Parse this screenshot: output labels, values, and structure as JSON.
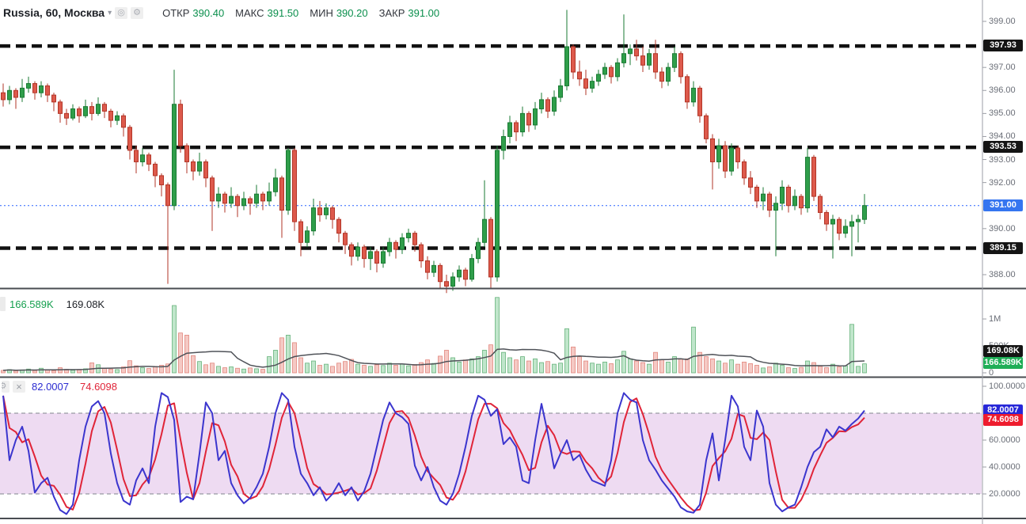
{
  "header": {
    "symbol": "Russia, 60, Москва",
    "caret_icon": "▾",
    "eye_icon": "◎",
    "gear_icon": "⚙",
    "ohlc_items": [
      {
        "label": "ОТКР",
        "value": "390.40"
      },
      {
        "label": "МАКС",
        "value": "391.50"
      },
      {
        "label": "МИН",
        "value": "390.20"
      },
      {
        "label": "ЗАКР",
        "value": "391.00"
      }
    ]
  },
  "volume_pane": {
    "legend_current": "166.589K",
    "legend_ma": "169.08K",
    "axis_ticks": [
      {
        "value": 1000,
        "label": "1M"
      },
      {
        "value": 500,
        "label": "500K"
      },
      {
        "value": 0,
        "label": "0"
      }
    ],
    "badge_ma": {
      "label": "169.08K"
    },
    "badge_current": {
      "label": "166.589K"
    }
  },
  "stoch_pane": {
    "gear_icon": "⚙",
    "close_icon": "×",
    "legend_k": "82.0007",
    "legend_d": "74.6098",
    "axis_ticks": [
      {
        "value": 100,
        "label": "100.0000"
      },
      {
        "value": 60,
        "label": "60.0000"
      },
      {
        "value": 40,
        "label": "40.0000"
      },
      {
        "value": 20,
        "label": "20.0000"
      }
    ],
    "badge_k": {
      "value": 82.0007,
      "label": "82.0007"
    },
    "badge_d": {
      "value": 74.6098,
      "label": "74.6098"
    }
  },
  "price_axis": {
    "ticks": [
      {
        "value": 399,
        "label": "399.00"
      },
      {
        "value": 397,
        "label": "397.00"
      },
      {
        "value": 396,
        "label": "396.00"
      },
      {
        "value": 395,
        "label": "395.00"
      },
      {
        "value": 394,
        "label": "394.00"
      },
      {
        "value": 393,
        "label": "393.00"
      },
      {
        "value": 392,
        "label": "392.00"
      },
      {
        "value": 390,
        "label": "390.00"
      },
      {
        "value": 388,
        "label": "388.00"
      }
    ],
    "level_badges": [
      {
        "value": 397.93,
        "label": "397.93"
      },
      {
        "value": 393.53,
        "label": "393.53"
      },
      {
        "value": 389.15,
        "label": "389.15"
      }
    ],
    "last_badge": {
      "value": 391.0,
      "label": "391.00"
    }
  },
  "colors": {
    "up_fill": "#2f9e4a",
    "up_stroke": "#1a7a33",
    "down_fill": "#dd5a4c",
    "down_stroke": "#b23527",
    "vol_up_fill": "#c0e6cb",
    "vol_up_stroke": "#5fae74",
    "vol_down_fill": "#f5c9c4",
    "vol_down_stroke": "#e08077",
    "vol_ma": "#4f5258",
    "k_line": "#3b35ce",
    "d_line": "#e02438",
    "band_fill": "#9c27b0",
    "band_edge": "#80848e",
    "level_line": "#111111",
    "last_price_line": "#2962ff",
    "divider": "#494c52",
    "axis_line": "#9b9ea6"
  },
  "chart_data": {
    "type": "candlestick",
    "title": "Russia, 60, Москва",
    "interval": "60",
    "exchange": "Москва",
    "last_price": 391.0,
    "price_levels": [
      397.93,
      393.53,
      389.15
    ],
    "stoch_band": [
      20,
      80
    ],
    "candles": [
      [
        395.9,
        396.3,
        395.3,
        395.6
      ],
      [
        395.6,
        396.2,
        395.4,
        396.0
      ],
      [
        396.0,
        396.1,
        395.2,
        395.7
      ],
      [
        395.7,
        396.5,
        395.5,
        396.1
      ],
      [
        396.1,
        396.6,
        395.9,
        396.3
      ],
      [
        396.3,
        396.4,
        395.6,
        395.9
      ],
      [
        395.9,
        396.4,
        395.7,
        396.2
      ],
      [
        396.2,
        396.3,
        395.5,
        395.8
      ],
      [
        395.8,
        395.9,
        395.1,
        395.5
      ],
      [
        395.5,
        395.6,
        394.6,
        395.0
      ],
      [
        395.0,
        395.2,
        394.5,
        394.8
      ],
      [
        394.8,
        395.4,
        394.7,
        395.2
      ],
      [
        395.2,
        395.3,
        394.6,
        394.9
      ],
      [
        394.9,
        395.6,
        394.8,
        395.3
      ],
      [
        395.3,
        395.5,
        394.7,
        395.0
      ],
      [
        395.0,
        395.7,
        394.9,
        395.4
      ],
      [
        395.4,
        395.5,
        394.8,
        395.1
      ],
      [
        395.1,
        395.2,
        394.4,
        394.7
      ],
      [
        394.7,
        395.1,
        394.5,
        394.9
      ],
      [
        394.9,
        395.0,
        394.0,
        394.4
      ],
      [
        394.4,
        394.5,
        393.0,
        393.4
      ],
      [
        393.4,
        393.6,
        392.4,
        392.9
      ],
      [
        392.9,
        393.5,
        392.7,
        393.2
      ],
      [
        393.2,
        393.3,
        392.5,
        392.8
      ],
      [
        392.8,
        392.9,
        391.8,
        392.3
      ],
      [
        392.3,
        392.4,
        391.4,
        391.9
      ],
      [
        391.9,
        392.0,
        387.6,
        391.0
      ],
      [
        391.0,
        396.9,
        390.8,
        395.4
      ],
      [
        395.4,
        395.6,
        393.3,
        393.6
      ],
      [
        393.6,
        393.7,
        392.4,
        392.9
      ],
      [
        392.9,
        393.0,
        392.1,
        392.5
      ],
      [
        392.5,
        393.3,
        392.3,
        392.9
      ],
      [
        392.9,
        393.0,
        391.8,
        392.2
      ],
      [
        392.2,
        392.3,
        389.9,
        391.2
      ],
      [
        391.2,
        391.8,
        390.9,
        391.5
      ],
      [
        391.5,
        391.6,
        390.7,
        391.1
      ],
      [
        391.1,
        391.8,
        390.9,
        391.4
      ],
      [
        391.4,
        391.5,
        390.5,
        391.0
      ],
      [
        391.0,
        391.6,
        390.8,
        391.3
      ],
      [
        391.3,
        391.4,
        390.6,
        391.1
      ],
      [
        391.1,
        391.9,
        390.9,
        391.5
      ],
      [
        391.5,
        391.6,
        390.8,
        391.2
      ],
      [
        391.2,
        392.0,
        391.0,
        391.6
      ],
      [
        391.6,
        392.6,
        391.4,
        392.2
      ],
      [
        392.2,
        392.3,
        389.6,
        390.8
      ],
      [
        390.8,
        393.5,
        390.6,
        393.4
      ],
      [
        393.4,
        393.5,
        389.9,
        390.3
      ],
      [
        390.3,
        390.4,
        388.8,
        389.4
      ],
      [
        389.4,
        390.1,
        389.2,
        389.9
      ],
      [
        389.9,
        391.3,
        389.7,
        390.9
      ],
      [
        390.9,
        391.2,
        390.3,
        390.6
      ],
      [
        390.6,
        391.1,
        390.4,
        390.9
      ],
      [
        390.9,
        391.0,
        390.0,
        390.4
      ],
      [
        390.4,
        390.5,
        389.4,
        389.8
      ],
      [
        389.8,
        389.9,
        388.9,
        389.3
      ],
      [
        389.3,
        389.4,
        388.4,
        388.8
      ],
      [
        388.8,
        389.4,
        388.6,
        389.2
      ],
      [
        389.2,
        389.3,
        388.3,
        388.7
      ],
      [
        388.7,
        389.2,
        388.2,
        389.0
      ],
      [
        389.0,
        389.1,
        388.1,
        388.5
      ],
      [
        388.5,
        389.2,
        388.3,
        389.0
      ],
      [
        389.0,
        389.6,
        388.8,
        389.4
      ],
      [
        389.4,
        389.5,
        388.7,
        389.1
      ],
      [
        389.1,
        389.8,
        388.9,
        389.6
      ],
      [
        389.6,
        390.0,
        389.4,
        389.8
      ],
      [
        389.8,
        389.9,
        389.0,
        389.3
      ],
      [
        389.3,
        389.4,
        388.3,
        388.6
      ],
      [
        388.6,
        388.8,
        387.8,
        388.1
      ],
      [
        388.1,
        388.6,
        387.9,
        388.4
      ],
      [
        388.4,
        388.5,
        387.4,
        387.7
      ],
      [
        387.7,
        388.0,
        387.2,
        387.5
      ],
      [
        387.5,
        388.1,
        387.3,
        387.9
      ],
      [
        387.9,
        388.4,
        387.7,
        388.2
      ],
      [
        388.2,
        388.3,
        387.5,
        387.8
      ],
      [
        387.8,
        388.9,
        387.7,
        388.7
      ],
      [
        388.7,
        389.6,
        388.5,
        389.4
      ],
      [
        389.4,
        392.1,
        389.2,
        390.4
      ],
      [
        390.4,
        390.5,
        387.4,
        387.9
      ],
      [
        387.9,
        393.6,
        387.7,
        393.4
      ],
      [
        393.4,
        394.3,
        393.0,
        394.0
      ],
      [
        394.0,
        394.9,
        393.7,
        394.6
      ],
      [
        394.6,
        394.7,
        393.8,
        394.2
      ],
      [
        394.2,
        395.3,
        394.0,
        395.0
      ],
      [
        395.0,
        395.1,
        394.2,
        394.5
      ],
      [
        394.5,
        395.5,
        394.3,
        395.2
      ],
      [
        395.2,
        395.9,
        395.0,
        395.6
      ],
      [
        395.6,
        395.7,
        394.8,
        395.1
      ],
      [
        395.1,
        396.0,
        394.9,
        395.7
      ],
      [
        395.7,
        396.5,
        395.5,
        396.2
      ],
      [
        396.2,
        399.5,
        396.0,
        397.9
      ],
      [
        397.9,
        398.0,
        396.5,
        396.8
      ],
      [
        396.8,
        397.3,
        396.2,
        396.5
      ],
      [
        396.5,
        396.9,
        395.8,
        396.1
      ],
      [
        396.1,
        396.6,
        395.9,
        396.4
      ],
      [
        396.4,
        396.9,
        396.2,
        396.7
      ],
      [
        396.7,
        397.2,
        396.5,
        397.0
      ],
      [
        397.0,
        397.1,
        396.3,
        396.6
      ],
      [
        396.6,
        397.4,
        396.4,
        397.2
      ],
      [
        397.2,
        399.3,
        397.0,
        397.6
      ],
      [
        397.6,
        398.0,
        397.1,
        397.8
      ],
      [
        397.8,
        398.2,
        397.3,
        397.5
      ],
      [
        397.5,
        397.9,
        396.8,
        397.1
      ],
      [
        397.1,
        397.8,
        396.9,
        397.6
      ],
      [
        397.6,
        398.2,
        396.5,
        396.8
      ],
      [
        396.8,
        397.0,
        396.1,
        396.4
      ],
      [
        396.4,
        397.2,
        396.2,
        397.0
      ],
      [
        397.0,
        397.9,
        396.8,
        397.6
      ],
      [
        397.6,
        397.7,
        396.3,
        396.6
      ],
      [
        396.6,
        396.7,
        395.2,
        395.5
      ],
      [
        395.5,
        396.4,
        395.3,
        396.1
      ],
      [
        396.1,
        396.2,
        394.6,
        394.9
      ],
      [
        394.9,
        395.0,
        393.7,
        393.9
      ],
      [
        393.9,
        394.1,
        391.7,
        392.9
      ],
      [
        392.9,
        393.9,
        392.6,
        393.6
      ],
      [
        393.6,
        393.8,
        392.2,
        392.5
      ],
      [
        392.5,
        393.7,
        392.3,
        393.5
      ],
      [
        393.5,
        393.6,
        392.6,
        392.9
      ],
      [
        392.9,
        393.0,
        391.9,
        392.2
      ],
      [
        392.2,
        392.5,
        391.5,
        391.8
      ],
      [
        391.8,
        391.9,
        390.9,
        391.2
      ],
      [
        391.2,
        391.8,
        390.8,
        391.5
      ],
      [
        391.5,
        391.6,
        390.5,
        390.8
      ],
      [
        390.8,
        391.4,
        388.8,
        391.1
      ],
      [
        391.1,
        392.1,
        390.8,
        391.8
      ],
      [
        391.8,
        391.9,
        390.7,
        391.0
      ],
      [
        391.0,
        391.7,
        390.8,
        391.4
      ],
      [
        391.4,
        391.5,
        390.6,
        390.9
      ],
      [
        390.9,
        393.5,
        390.7,
        393.1
      ],
      [
        393.1,
        393.2,
        391.2,
        391.4
      ],
      [
        391.4,
        391.5,
        390.4,
        390.7
      ],
      [
        390.7,
        390.8,
        389.9,
        390.2
      ],
      [
        390.2,
        390.6,
        388.7,
        390.4
      ],
      [
        390.4,
        390.5,
        389.5,
        389.8
      ],
      [
        389.8,
        390.4,
        389.6,
        390.1
      ],
      [
        390.1,
        390.6,
        388.8,
        390.3
      ],
      [
        390.3,
        390.6,
        389.4,
        390.4
      ],
      [
        390.4,
        391.5,
        390.2,
        391.0
      ]
    ],
    "volumes_k": [
      45,
      60,
      38,
      55,
      70,
      42,
      85,
      50,
      40,
      95,
      65,
      48,
      55,
      75,
      185,
      150,
      90,
      70,
      60,
      110,
      225,
      130,
      95,
      80,
      120,
      140,
      165,
      1250,
      740,
      700,
      320,
      210,
      150,
      180,
      120,
      95,
      110,
      85,
      70,
      90,
      75,
      65,
      300,
      420,
      650,
      700,
      560,
      280,
      180,
      220,
      140,
      160,
      120,
      180,
      210,
      250,
      160,
      140,
      120,
      150,
      135,
      180,
      140,
      160,
      130,
      155,
      190,
      240,
      175,
      310,
      420,
      280,
      200,
      240,
      260,
      300,
      420,
      520,
      1400,
      380,
      280,
      240,
      300,
      220,
      260,
      190,
      210,
      160,
      180,
      820,
      480,
      300,
      220,
      180,
      160,
      200,
      170,
      240,
      400,
      260,
      220,
      190,
      160,
      380,
      240,
      200,
      300,
      260,
      260,
      850,
      380,
      300,
      260,
      220,
      180,
      240,
      160,
      200,
      170,
      140,
      90,
      110,
      180,
      140,
      95,
      80,
      100,
      220,
      190,
      120,
      95,
      160,
      110,
      130,
      900,
      120,
      166.589
    ],
    "stoch_k": [
      93,
      45,
      60,
      70,
      52,
      21,
      28,
      32,
      18,
      8,
      5,
      12,
      45,
      70,
      85,
      89,
      80,
      50,
      28,
      15,
      12,
      30,
      39,
      28,
      70,
      95,
      92,
      75,
      14,
      18,
      16,
      50,
      88,
      80,
      45,
      52,
      28,
      19,
      13,
      17,
      25,
      35,
      55,
      80,
      95,
      90,
      55,
      35,
      28,
      19,
      25,
      15,
      20,
      28,
      19,
      25,
      15,
      22,
      35,
      55,
      75,
      88,
      80,
      77,
      72,
      41,
      30,
      40,
      25,
      15,
      12,
      20,
      35,
      55,
      78,
      93,
      90,
      78,
      83,
      57,
      62,
      55,
      30,
      28,
      60,
      87,
      65,
      39,
      50,
      60,
      45,
      49,
      38,
      30,
      28,
      26,
      45,
      80,
      95,
      90,
      88,
      60,
      45,
      38,
      30,
      24,
      18,
      10,
      7,
      6,
      12,
      45,
      65,
      30,
      60,
      93,
      85,
      55,
      45,
      82,
      70,
      28,
      12,
      7,
      10,
      12,
      25,
      40,
      51,
      55,
      68,
      62,
      70,
      67,
      72,
      76,
      82.0007
    ]
  }
}
